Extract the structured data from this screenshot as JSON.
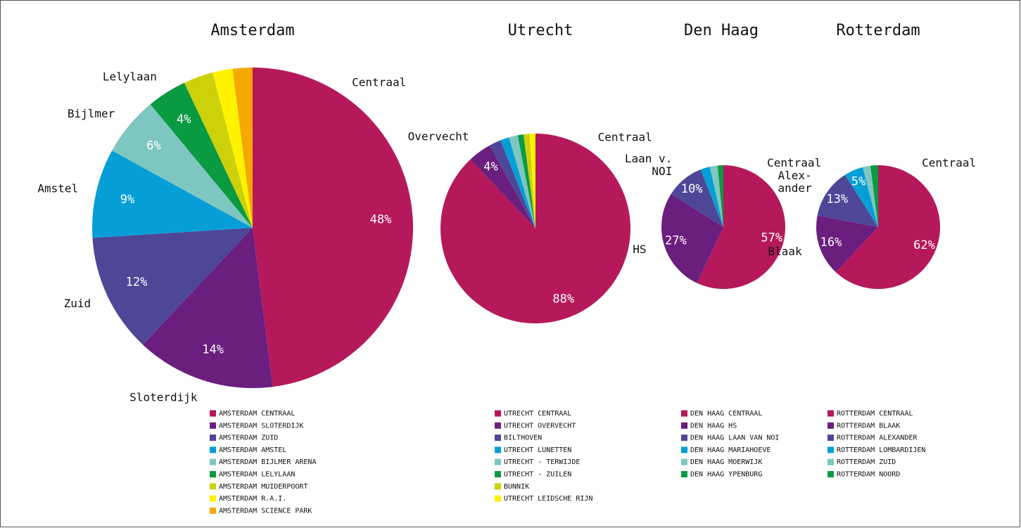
{
  "chart_data": [
    {
      "type": "pie",
      "title": "Amsterdam",
      "categories": [
        "AMSTERDAM CENTRAAL",
        "AMSTERDAM SLOTERDIJK",
        "AMSTERDAM ZUID",
        "AMSTERDAM AMSTEL",
        "AMSTERDAM BIJLMER ARENA",
        "AMSTERDAM LELYLAAN",
        "AMSTERDAM MUIDERPOORT",
        "AMSTERDAM R.A.I.",
        "AMSTERDAM SCIENCE PARK"
      ],
      "values": [
        48,
        14,
        12,
        9,
        6,
        4,
        3,
        2,
        2
      ],
      "value_labels": [
        "48%",
        "14%",
        "12%",
        "9%",
        "6%",
        "4%",
        null,
        null,
        null
      ],
      "slice_labels": [
        [
          "Centraal"
        ],
        [
          "Sloterdijk"
        ],
        [
          "Zuid"
        ],
        [
          "Amstel"
        ],
        [
          "Bijlmer"
        ],
        [
          "Lelylaan"
        ],
        null,
        null,
        null
      ],
      "colors": [
        "#b5195b",
        "#6a1e7e",
        "#4e4797",
        "#069ed6",
        "#7ec6c0",
        "#0a9a42",
        "#cdd10a",
        "#fff200",
        "#f5a800"
      ]
    },
    {
      "type": "pie",
      "title": "Utrecht",
      "categories": [
        "UTRECHT CENTRAAL",
        "UTRECHT OVERVECHT",
        "BILTHOVEN",
        "UTRECHT LUNETTEN",
        "UTRECHT - TERWIJDE",
        "UTRECHT - ZUILEN",
        "BUNNIK",
        "UTRECHT LEIDSCHE RIJN"
      ],
      "values": [
        88,
        4,
        2,
        1.5,
        1.5,
        1,
        1,
        1
      ],
      "value_labels": [
        "88%",
        "4%",
        null,
        null,
        null,
        null,
        null,
        null
      ],
      "slice_labels": [
        [
          "Centraal"
        ],
        [
          "Overvecht"
        ],
        null,
        null,
        null,
        null,
        null,
        null
      ],
      "colors": [
        "#b5195b",
        "#6a1e7e",
        "#4e4797",
        "#069ed6",
        "#7ec6c0",
        "#0a9a42",
        "#cdd10a",
        "#fff200"
      ]
    },
    {
      "type": "pie",
      "title": "Den Haag",
      "categories": [
        "DEN HAAG CENTRAAL",
        "DEN HAAG HS",
        "DEN HAAG LAAN VAN NOI",
        "DEN HAAG MARIAHOEVE",
        "DEN HAAG MOERWIJK",
        "DEN HAAG YPENBURG"
      ],
      "values": [
        57,
        27,
        10,
        2.5,
        2,
        1.5
      ],
      "value_labels": [
        "57%",
        "27%",
        "10%",
        null,
        null,
        null
      ],
      "slice_labels": [
        [
          "Centraal"
        ],
        [
          "HS"
        ],
        [
          "Laan v.",
          "NOI"
        ],
        null,
        null,
        null
      ],
      "colors": [
        "#b5195b",
        "#6a1e7e",
        "#4e4797",
        "#069ed6",
        "#7ec6c0",
        "#0a9a42"
      ]
    },
    {
      "type": "pie",
      "title": "Rotterdam",
      "categories": [
        "ROTTERDAM CENTRAAL",
        "ROTTERDAM BLAAK",
        "ROTTERDAM ALEXANDER",
        "ROTTERDAM LOMBARDIJEN",
        "ROTTERDAM ZUID",
        "ROTTERDAM NOORD"
      ],
      "values": [
        62,
        16,
        13,
        5,
        2,
        2
      ],
      "value_labels": [
        "62%",
        "16%",
        "13%",
        "5%",
        null,
        null
      ],
      "slice_labels": [
        [
          "Centraal"
        ],
        [
          "Blaak"
        ],
        [
          "Alex-",
          "ander"
        ],
        null,
        null,
        null
      ],
      "colors": [
        "#b5195b",
        "#6a1e7e",
        "#4e4797",
        "#069ed6",
        "#7ec6c0",
        "#0a9a42"
      ]
    }
  ]
}
